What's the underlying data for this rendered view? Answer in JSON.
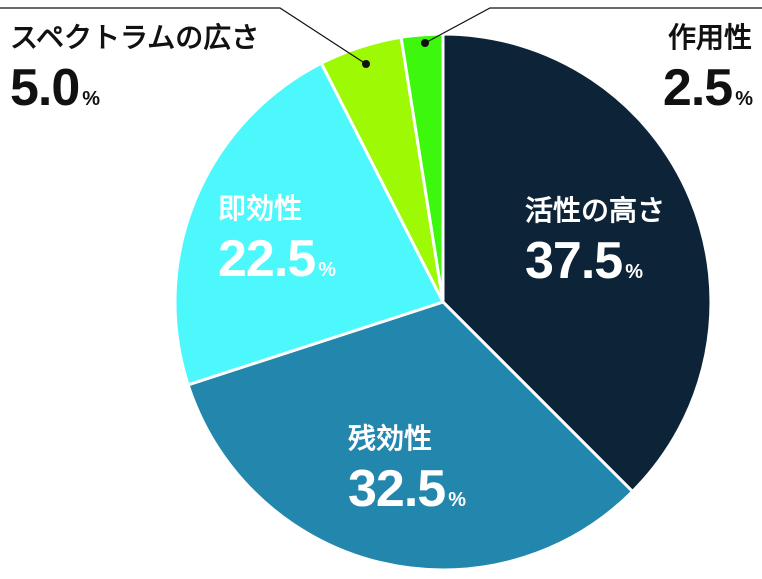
{
  "chart_data": {
    "type": "pie",
    "unit": "%",
    "slices": [
      {
        "label": "活性の高さ",
        "value": 37.5,
        "value_text": "37.5",
        "color": "#0d2337",
        "text_color": "#ffffff"
      },
      {
        "label": "残効性",
        "value": 32.5,
        "value_text": "32.5",
        "color": "#2286ad",
        "text_color": "#ffffff"
      },
      {
        "label": "即効性",
        "value": 22.5,
        "value_text": "22.5",
        "color": "#4df8fd",
        "text_color": "#ffffff"
      },
      {
        "label": "スペクトラムの広さ",
        "value": 5.0,
        "value_text": "5.0",
        "color": "#9ef905",
        "text_color": "#111111"
      },
      {
        "label": "作用性",
        "value": 2.5,
        "value_text": "2.5",
        "color": "#3df70d",
        "text_color": "#111111"
      }
    ],
    "start_angle": "12 o'clock",
    "direction": "clockwise"
  }
}
